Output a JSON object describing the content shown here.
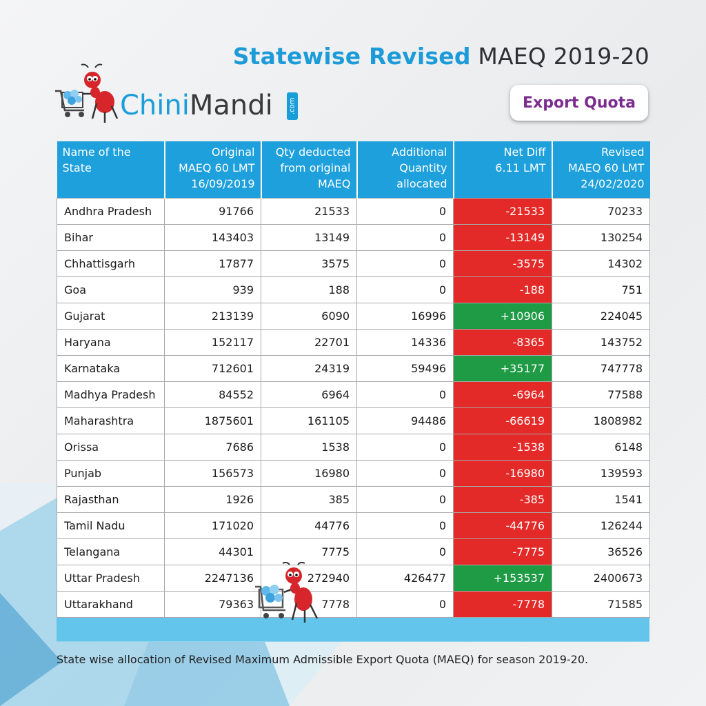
{
  "header": {
    "title_bold": "Statewise Revised",
    "title_rest": "MAEQ 2019-20",
    "badge": "Export Quota"
  },
  "logo": {
    "part1": "Chini",
    "part2": "Mandi",
    "suffix": ".com"
  },
  "table": {
    "columns": [
      [
        "Name of the",
        "State"
      ],
      [
        "Original",
        "MAEQ 60 LMT",
        "16/09/2019"
      ],
      [
        "Qty deducted",
        "from original",
        "MAEQ"
      ],
      [
        "Additional",
        "Quantity",
        "allocated"
      ],
      [
        "Net Diff",
        "6.11 LMT"
      ],
      [
        "Revised",
        "MAEQ 60 LMT",
        "24/02/2020"
      ]
    ],
    "rows": [
      [
        "Andhra Pradesh",
        "91766",
        "21533",
        "0",
        "-21533",
        "70233"
      ],
      [
        "Bihar",
        "143403",
        "13149",
        "0",
        "-13149",
        "130254"
      ],
      [
        "Chhattisgarh",
        "17877",
        "3575",
        "0",
        "-3575",
        "14302"
      ],
      [
        "Goa",
        "939",
        "188",
        "0",
        "-188",
        "751"
      ],
      [
        "Gujarat",
        "213139",
        "6090",
        "16996",
        "+10906",
        "224045"
      ],
      [
        "Haryana",
        "152117",
        "22701",
        "14336",
        "-8365",
        "143752"
      ],
      [
        "Karnataka",
        "712601",
        "24319",
        "59496",
        "+35177",
        "747778"
      ],
      [
        "Madhya Pradesh",
        "84552",
        "6964",
        "0",
        "-6964",
        "77588"
      ],
      [
        "Maharashtra",
        "1875601",
        "161105",
        "94486",
        "-66619",
        "1808982"
      ],
      [
        "Orissa",
        "7686",
        "1538",
        "0",
        "-1538",
        "6148"
      ],
      [
        "Punjab",
        "156573",
        "16980",
        "0",
        "-16980",
        "139593"
      ],
      [
        "Rajasthan",
        "1926",
        "385",
        "0",
        "-385",
        "1541"
      ],
      [
        "Tamil Nadu",
        "171020",
        "44776",
        "0",
        "-44776",
        "126244"
      ],
      [
        "Telangana",
        "44301",
        "7775",
        "0",
        "-7775",
        "36526"
      ],
      [
        "Uttar Pradesh",
        "2247136",
        "272940",
        "426477",
        "+153537",
        "2400673"
      ],
      [
        "Uttarakhand",
        "79363",
        "7778",
        "0",
        "-7778",
        "71585"
      ]
    ]
  },
  "colors": {
    "header_blue": "#1ea0dc",
    "negative_red": "#e32a28",
    "positive_green": "#1f9a45",
    "badge_purple": "#7b2d8e"
  },
  "icons": [
    "ant-mascot-icon",
    "sugar-cart-icon"
  ],
  "caption": "State wise allocation of Revised Maximum Admissible Export Quota (MAEQ) for season 2019-20."
}
